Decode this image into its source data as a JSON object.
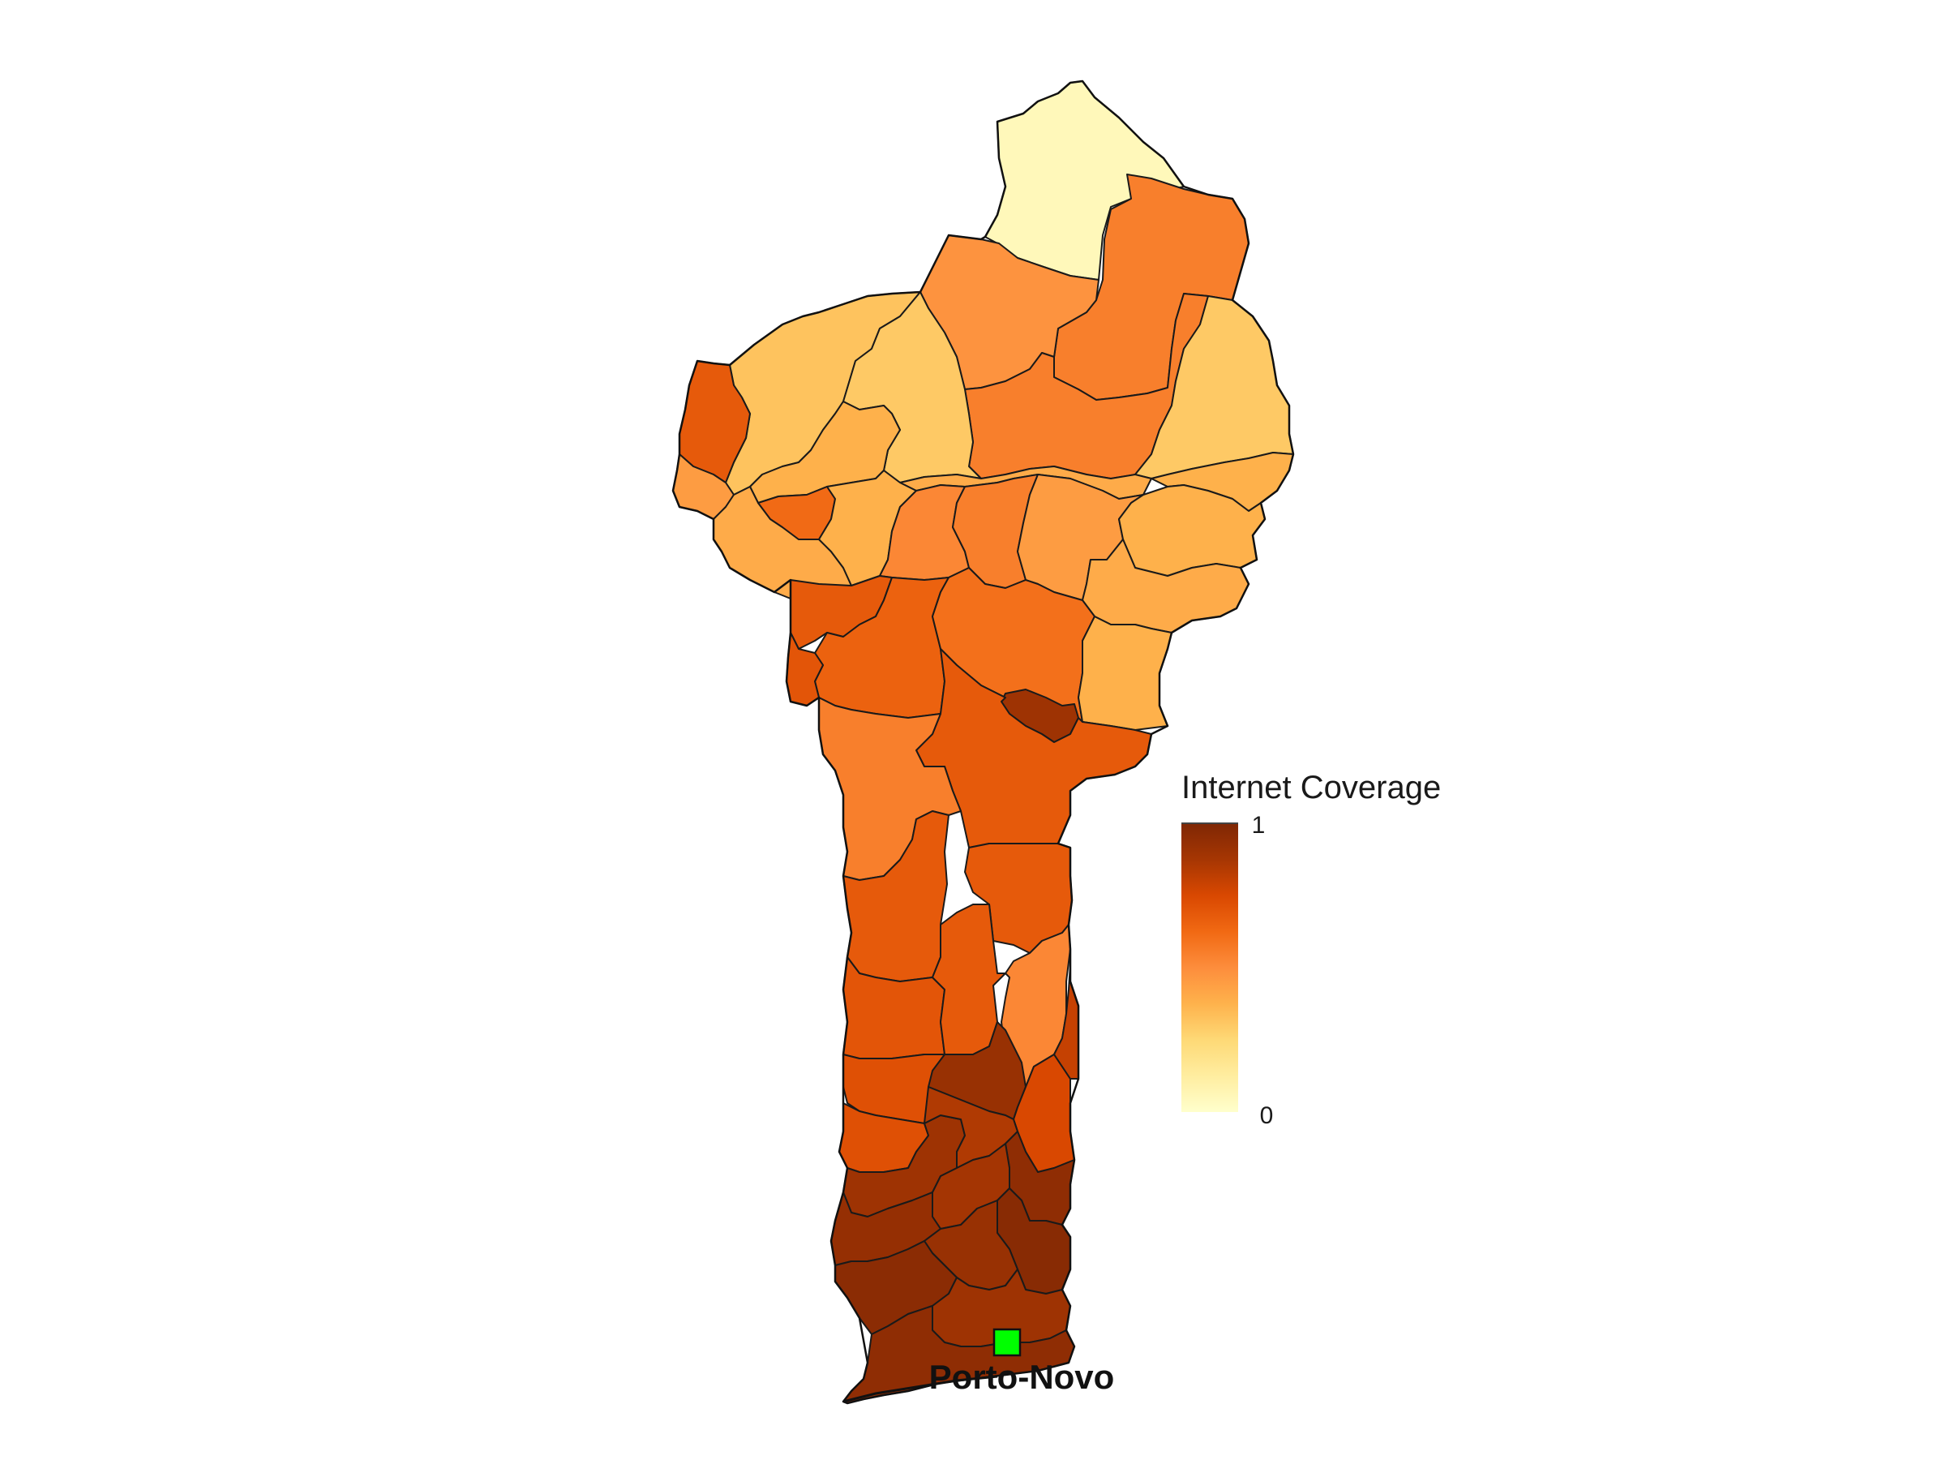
{
  "legend": {
    "title": "Internet Coverage",
    "max_label": "1",
    "min_label": "0",
    "min_value": 0,
    "max_value": 1,
    "colors": [
      "#ffffcc",
      "#ffeda0",
      "#fed976",
      "#feb24c",
      "#fd8d3c",
      "#f16913",
      "#d94801",
      "#a63603",
      "#7f2704"
    ]
  },
  "capital": {
    "name": "Porto-Novo",
    "marker_color": "#00ff00"
  },
  "regions": [
    {
      "id": "alibori-north",
      "value": 0.05
    },
    {
      "id": "north-east-1",
      "value": 0.55
    },
    {
      "id": "north-central-1",
      "value": 0.48
    },
    {
      "id": "north-central-2",
      "value": 0.55
    },
    {
      "id": "north-west-1",
      "value": 0.32
    },
    {
      "id": "north-west-2",
      "value": 0.3
    },
    {
      "id": "north-east-2",
      "value": 0.3
    },
    {
      "id": "atacora-west-strip",
      "value": 0.68
    },
    {
      "id": "atacora-mid",
      "value": 0.38
    },
    {
      "id": "center-north-1",
      "value": 0.4
    },
    {
      "id": "east-north-1",
      "value": 0.38
    },
    {
      "id": "west-1",
      "value": 0.45
    },
    {
      "id": "west-2",
      "value": 0.4
    },
    {
      "id": "west-3",
      "value": 0.62
    },
    {
      "id": "west-4",
      "value": 0.38
    },
    {
      "id": "center-2",
      "value": 0.52
    },
    {
      "id": "center-3",
      "value": 0.55
    },
    {
      "id": "center-4",
      "value": 0.45
    },
    {
      "id": "east-2",
      "value": 0.38
    },
    {
      "id": "east-3",
      "value": 0.4
    },
    {
      "id": "donga-1",
      "value": 0.68
    },
    {
      "id": "donga-2",
      "value": 0.65
    },
    {
      "id": "donga-3",
      "value": 0.7
    },
    {
      "id": "borgou-1",
      "value": 0.6
    },
    {
      "id": "borgou-2",
      "value": 0.38
    },
    {
      "id": "parakou",
      "value": 0.9
    },
    {
      "id": "center-south-1",
      "value": 0.68
    },
    {
      "id": "collines-west",
      "value": 0.55
    },
    {
      "id": "collines-1",
      "value": 0.68
    },
    {
      "id": "collines-2",
      "value": 0.68
    },
    {
      "id": "collines-3",
      "value": 0.7
    },
    {
      "id": "collines-4",
      "value": 0.68
    },
    {
      "id": "collines-east",
      "value": 0.52
    },
    {
      "id": "zou-1",
      "value": 0.72
    },
    {
      "id": "zou-2",
      "value": 0.72
    },
    {
      "id": "zou-3",
      "value": 0.92
    },
    {
      "id": "plateau-1",
      "value": 0.75
    },
    {
      "id": "plateau-2",
      "value": 0.8
    },
    {
      "id": "south-1",
      "value": 0.9
    },
    {
      "id": "south-2",
      "value": 0.85
    },
    {
      "id": "south-3",
      "value": 0.95
    },
    {
      "id": "south-4",
      "value": 0.88
    },
    {
      "id": "south-5",
      "value": 0.93
    },
    {
      "id": "south-6",
      "value": 0.97
    },
    {
      "id": "south-7",
      "value": 0.92
    },
    {
      "id": "south-8",
      "value": 0.96
    },
    {
      "id": "south-9",
      "value": 0.9
    },
    {
      "id": "south-10",
      "value": 0.95
    }
  ]
}
